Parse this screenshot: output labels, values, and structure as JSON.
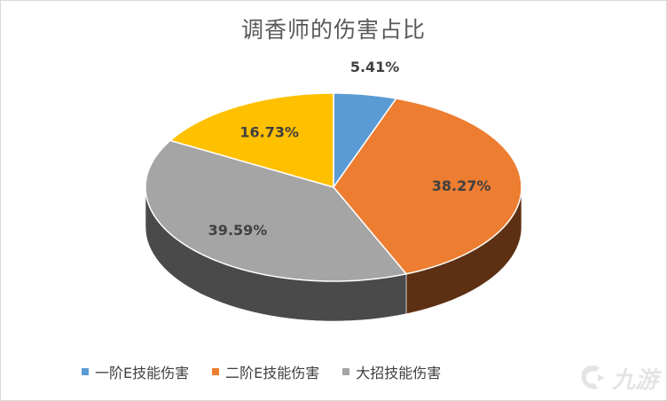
{
  "chart_data": {
    "type": "pie",
    "title": "调香师的伤害占比",
    "categories": [
      "一阶E技能伤害",
      "二阶E技能伤害",
      "大招技能伤害",
      ""
    ],
    "values": [
      5.41,
      38.27,
      39.59,
      16.73
    ],
    "value_labels": [
      "5.41%",
      "38.27%",
      "39.59%",
      "16.73%"
    ],
    "colors": [
      "#5b9bd5",
      "#ed7d31",
      "#a5a5a5",
      "#ffc000"
    ],
    "side_colors": [
      "#2e5e8c",
      "#5e3013",
      "#4a4a4a",
      "#7f6000"
    ],
    "legend_position": "bottom",
    "style": "3d"
  },
  "legend": {
    "items": [
      {
        "label": "一阶E技能伤害",
        "color": "#5b9bd5"
      },
      {
        "label": "二阶E技能伤害",
        "color": "#ed7d31"
      },
      {
        "label": "大招技能伤害",
        "color": "#a5a5a5"
      }
    ]
  },
  "watermark": {
    "text": "九游"
  }
}
